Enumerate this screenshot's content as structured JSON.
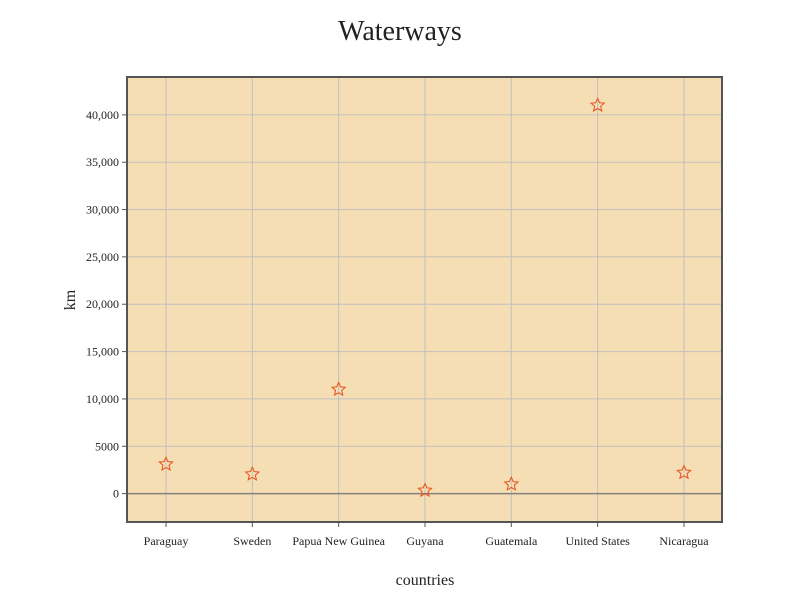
{
  "chart_data": {
    "type": "scatter",
    "title": "Waterways",
    "xlabel": "countries",
    "ylabel": "km",
    "categories": [
      "Paraguay",
      "Sweden",
      "Papua New Guinea",
      "Guyana",
      "Guatemala",
      "United States",
      "Nicaragua"
    ],
    "values": [
      3100,
      2052,
      11000,
      330,
      990,
      41009,
      2220
    ],
    "ylim": [
      -3000,
      44000
    ],
    "yticks": [
      0,
      5000,
      10000,
      15000,
      20000,
      25000,
      30000,
      35000,
      40000
    ],
    "ytick_labels": [
      "0",
      "5000",
      "10,000",
      "15,000",
      "20,000",
      "25,000",
      "30,000",
      "35,000",
      "40,000"
    ],
    "grid": true,
    "marker": "star",
    "colors": {
      "plot_background": "#f5deb3",
      "marker_stroke": "#e8501c",
      "grid": "#c0c0c0",
      "zero_line": "#808080",
      "frame": "#555555"
    }
  }
}
